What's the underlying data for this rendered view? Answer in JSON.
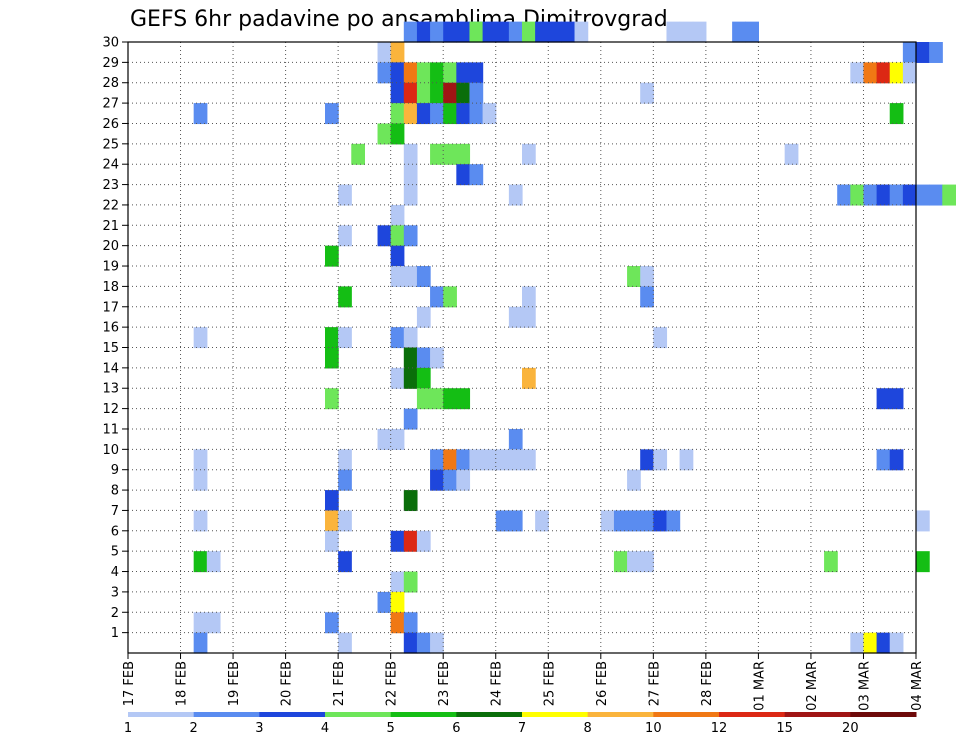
{
  "chart_data": {
    "type": "heatmap",
    "title": "GEFS 6hr padavine po ansamblima Dimitrovgrad",
    "x_tick_labels": [
      "17 FEB",
      "18 FEB",
      "19 FEB",
      "20 FEB",
      "21 FEB",
      "22 FEB",
      "23 FEB",
      "24 FEB",
      "25 FEB",
      "26 FEB",
      "27 FEB",
      "28 FEB",
      "01 MAR",
      "02 MAR",
      "03 MAR",
      "04 MAR"
    ],
    "y_tick_labels": [
      "1",
      "2",
      "3",
      "4",
      "5",
      "6",
      "7",
      "8",
      "9",
      "10",
      "11",
      "12",
      "13",
      "14",
      "15",
      "16",
      "17",
      "18",
      "19",
      "20",
      "21",
      "22",
      "23",
      "24",
      "25",
      "26",
      "27",
      "28",
      "29",
      "30"
    ],
    "x_range_steps": [
      0,
      60
    ],
    "steps_per_day": 4,
    "y_range": [
      0,
      30
    ],
    "grid": true,
    "legend": {
      "placement": "bottom",
      "levels": [
        "1",
        "2",
        "3",
        "4",
        "5",
        "6",
        "7",
        "8",
        "10",
        "12",
        "15",
        "20"
      ],
      "colors": [
        "#b4c8f5",
        "#5a8cf0",
        "#1e46dc",
        "#6ee65a",
        "#14be14",
        "#0a6e0a",
        "#ffff00",
        "#fab43c",
        "#f07814",
        "#dc2814",
        "#a01414",
        "#6e0a0a"
      ]
    },
    "cells": [
      [
        30,
        "#5a8cf0",
        [
          [
            21,
            1
          ],
          [
            22,
            2
          ],
          [
            23,
            1
          ],
          [
            24,
            2
          ],
          [
            25,
            2
          ],
          [
            26,
            1
          ],
          [
            26,
            3
          ],
          [
            27,
            2
          ],
          [
            28,
            2
          ],
          [
            29,
            1
          ],
          [
            30,
            3
          ],
          [
            31,
            2
          ],
          [
            32,
            2
          ],
          [
            33,
            2
          ],
          [
            34,
            0
          ],
          [
            41,
            0
          ],
          [
            42,
            0
          ],
          [
            43,
            0
          ],
          [
            46,
            1
          ],
          [
            47,
            1
          ]
        ]
      ],
      [
        29,
        "#b4c8f5",
        [
          [
            19,
            0
          ],
          [
            20,
            7
          ],
          [
            59,
            1
          ],
          [
            60,
            2
          ],
          [
            61,
            1
          ]
        ]
      ],
      [
        28,
        "#5a8cf0",
        [
          [
            19,
            1
          ],
          [
            20,
            2
          ],
          [
            21,
            8
          ],
          [
            22,
            3
          ],
          [
            23,
            4
          ],
          [
            24,
            3
          ],
          [
            25,
            2
          ],
          [
            26,
            2
          ],
          [
            55,
            0
          ],
          [
            56,
            8
          ],
          [
            57,
            9
          ],
          [
            58,
            6
          ],
          [
            59,
            0
          ]
        ]
      ],
      [
        27,
        "#1e46dc",
        [
          [
            20,
            2
          ],
          [
            21,
            9
          ],
          [
            22,
            3
          ],
          [
            23,
            4
          ],
          [
            24,
            10
          ],
          [
            25,
            5
          ],
          [
            26,
            1
          ],
          [
            39,
            0
          ]
        ]
      ],
      [
        26,
        "#5a8cf0",
        [
          [
            5,
            1
          ],
          [
            15,
            1
          ],
          [
            20,
            3
          ],
          [
            21,
            7
          ],
          [
            22,
            2
          ],
          [
            23,
            1
          ],
          [
            24,
            4
          ],
          [
            25,
            2
          ],
          [
            26,
            1
          ],
          [
            27,
            0
          ],
          [
            58,
            4
          ]
        ]
      ],
      [
        25,
        "#14be14",
        [
          [
            19,
            3
          ],
          [
            20,
            4
          ]
        ]
      ],
      [
        24,
        "#6ee65a",
        [
          [
            17,
            3
          ],
          [
            21,
            0
          ],
          [
            23,
            3
          ],
          [
            24,
            3
          ],
          [
            25,
            3
          ],
          [
            30,
            0
          ],
          [
            50,
            0
          ]
        ]
      ],
      [
        23,
        "#b4c8f5",
        [
          [
            21,
            0
          ],
          [
            25,
            2
          ],
          [
            26,
            1
          ]
        ]
      ],
      [
        22,
        "#b4c8f5",
        [
          [
            16,
            0
          ],
          [
            21,
            0
          ],
          [
            29,
            0
          ],
          [
            54,
            1
          ],
          [
            55,
            3
          ],
          [
            56,
            1
          ],
          [
            57,
            2
          ],
          [
            58,
            1
          ],
          [
            59,
            2
          ],
          [
            60,
            1
          ],
          [
            61,
            1
          ],
          [
            62,
            3
          ]
        ]
      ],
      [
        21,
        "#b4c8f5",
        [
          [
            20,
            0
          ]
        ]
      ],
      [
        20,
        "#b4c8f5",
        [
          [
            16,
            0
          ],
          [
            19,
            2
          ],
          [
            20,
            3
          ],
          [
            21,
            1
          ]
        ]
      ],
      [
        19,
        "#1e46dc",
        [
          [
            15,
            4
          ],
          [
            20,
            2
          ]
        ]
      ],
      [
        18,
        "#b4c8f5",
        [
          [
            20,
            0
          ],
          [
            21,
            0
          ],
          [
            22,
            1
          ],
          [
            38,
            3
          ],
          [
            39,
            0
          ]
        ]
      ],
      [
        17,
        "#b4c8f5",
        [
          [
            16,
            4
          ],
          [
            23,
            1
          ],
          [
            24,
            3
          ],
          [
            30,
            0
          ],
          [
            39,
            1
          ]
        ]
      ],
      [
        16,
        "#b4c8f5",
        [
          [
            22,
            0
          ],
          [
            29,
            0
          ],
          [
            30,
            0
          ]
        ]
      ],
      [
        15,
        "#5a8cf0",
        [
          [
            5,
            0
          ],
          [
            15,
            4
          ],
          [
            16,
            0
          ],
          [
            20,
            1
          ],
          [
            21,
            0
          ],
          [
            40,
            0
          ]
        ]
      ],
      [
        14,
        "#1e46dc",
        [
          [
            15,
            4
          ],
          [
            21,
            5
          ],
          [
            22,
            1
          ],
          [
            23,
            0
          ]
        ]
      ],
      [
        13,
        "#b4c8f5",
        [
          [
            20,
            0
          ],
          [
            21,
            5
          ],
          [
            22,
            4
          ],
          [
            30,
            7
          ]
        ]
      ],
      [
        12,
        "#6ee65a",
        [
          [
            15,
            3
          ],
          [
            22,
            3
          ],
          [
            23,
            3
          ],
          [
            24,
            4
          ],
          [
            25,
            4
          ],
          [
            57,
            2
          ],
          [
            58,
            2
          ]
        ]
      ],
      [
        11,
        "#5a8cf0",
        [
          [
            21,
            1
          ]
        ]
      ],
      [
        10,
        "#b4c8f5",
        [
          [
            19,
            0
          ],
          [
            20,
            0
          ],
          [
            29,
            1
          ]
        ]
      ],
      [
        9,
        "#b4c8f5",
        [
          [
            5,
            0
          ],
          [
            16,
            0
          ],
          [
            23,
            1
          ],
          [
            24,
            8
          ],
          [
            25,
            1
          ],
          [
            26,
            0
          ],
          [
            27,
            0
          ],
          [
            28,
            0
          ],
          [
            29,
            0
          ],
          [
            30,
            0
          ],
          [
            39,
            2
          ],
          [
            40,
            0
          ],
          [
            42,
            0
          ],
          [
            57,
            1
          ],
          [
            58,
            2
          ]
        ]
      ],
      [
        8,
        "#b4c8f5",
        [
          [
            5,
            0
          ],
          [
            16,
            1
          ],
          [
            23,
            2
          ],
          [
            24,
            1
          ],
          [
            25,
            0
          ],
          [
            38,
            0
          ]
        ]
      ],
      [
        7,
        "#1e46dc",
        [
          [
            15,
            2
          ],
          [
            21,
            5
          ]
        ]
      ],
      [
        6,
        "#b4c8f5",
        [
          [
            5,
            0
          ],
          [
            15,
            7
          ],
          [
            16,
            0
          ],
          [
            28,
            1
          ],
          [
            29,
            1
          ],
          [
            31,
            0
          ],
          [
            36,
            0
          ],
          [
            37,
            1
          ],
          [
            38,
            1
          ],
          [
            39,
            1
          ],
          [
            40,
            2
          ],
          [
            41,
            1
          ],
          [
            60,
            0
          ]
        ]
      ],
      [
        5,
        "#b4c8f5",
        [
          [
            15,
            0
          ],
          [
            20,
            2
          ],
          [
            21,
            9
          ],
          [
            22,
            0
          ]
        ]
      ],
      [
        4,
        "#14be14",
        [
          [
            5,
            4
          ],
          [
            6,
            0
          ],
          [
            16,
            2
          ],
          [
            37,
            3
          ],
          [
            38,
            0
          ],
          [
            39,
            0
          ],
          [
            53,
            3
          ],
          [
            60,
            4
          ]
        ]
      ],
      [
        3,
        "#b4c8f5",
        [
          [
            20,
            0
          ],
          [
            21,
            3
          ]
        ]
      ],
      [
        2,
        "#5a8cf0",
        [
          [
            19,
            1
          ],
          [
            20,
            6
          ]
        ]
      ],
      [
        1,
        "#b4c8f5",
        [
          [
            5,
            0
          ],
          [
            6,
            0
          ],
          [
            15,
            1
          ],
          [
            20,
            8
          ],
          [
            21,
            1
          ]
        ]
      ],
      [
        0,
        "#b4c8f5",
        [
          [
            5,
            1
          ],
          [
            16,
            0
          ],
          [
            21,
            2
          ],
          [
            22,
            1
          ],
          [
            23,
            0
          ],
          [
            55,
            0
          ],
          [
            56,
            6
          ],
          [
            57,
            2
          ],
          [
            58,
            0
          ]
        ]
      ]
    ]
  }
}
